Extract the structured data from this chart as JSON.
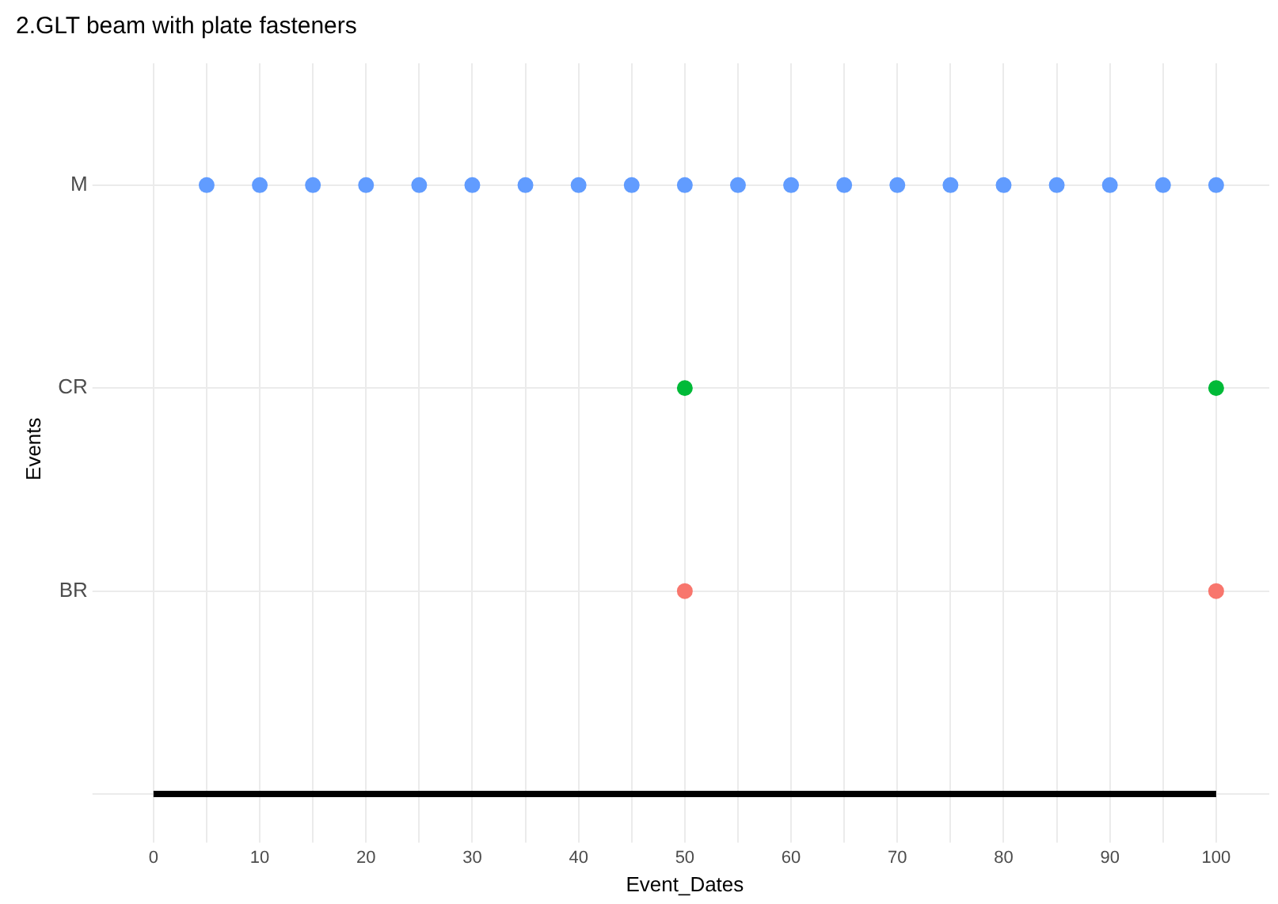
{
  "chart_data": {
    "type": "scatter",
    "orientation": "horizontal",
    "title": "2.GLT beam with plate fasteners",
    "xlabel": "Event_Dates",
    "ylabel": "Events",
    "marker": "circle",
    "grid": true,
    "categories": [
      "M",
      "CR",
      "BR",
      null
    ],
    "xlim": [
      -5,
      105
    ],
    "xticks": [
      0,
      {
        "value": 5,
        "label": null
      },
      10,
      {
        "value": 15,
        "label": null
      },
      20,
      {
        "value": 25,
        "label": null
      },
      30,
      {
        "value": 35,
        "label": null
      },
      40,
      {
        "value": 45,
        "label": null
      },
      50,
      {
        "value": 55,
        "label": null
      },
      60,
      {
        "value": 65,
        "label": null
      },
      70,
      {
        "value": 75,
        "label": null
      },
      80,
      {
        "value": 85,
        "label": null
      },
      90,
      {
        "value": 95,
        "label": null
      },
      100
    ],
    "series": [
      {
        "color": "#619cff",
        "x": [
          "M",
          "M",
          "M",
          "M",
          "M",
          "M",
          "M",
          "M",
          "M",
          "M",
          "M",
          "M",
          "M",
          "M",
          "M",
          "M",
          "M",
          "M",
          "M",
          "M"
        ],
        "values": [
          5,
          10,
          15,
          20,
          25,
          30,
          35,
          40,
          45,
          50,
          55,
          60,
          65,
          70,
          75,
          80,
          85,
          90,
          95,
          100
        ]
      },
      {
        "color": "#00ba38",
        "x": [
          "CR",
          "CR"
        ],
        "values": [
          50,
          100
        ]
      },
      {
        "color": "#f8766d",
        "x": [
          "BR",
          "BR"
        ],
        "values": [
          50,
          100
        ]
      },
      {
        "type": "bar",
        "color": "#000000",
        "base": [
          null,
          null,
          null,
          0
        ],
        "values": [
          null,
          null,
          null,
          100
        ]
      }
    ]
  }
}
